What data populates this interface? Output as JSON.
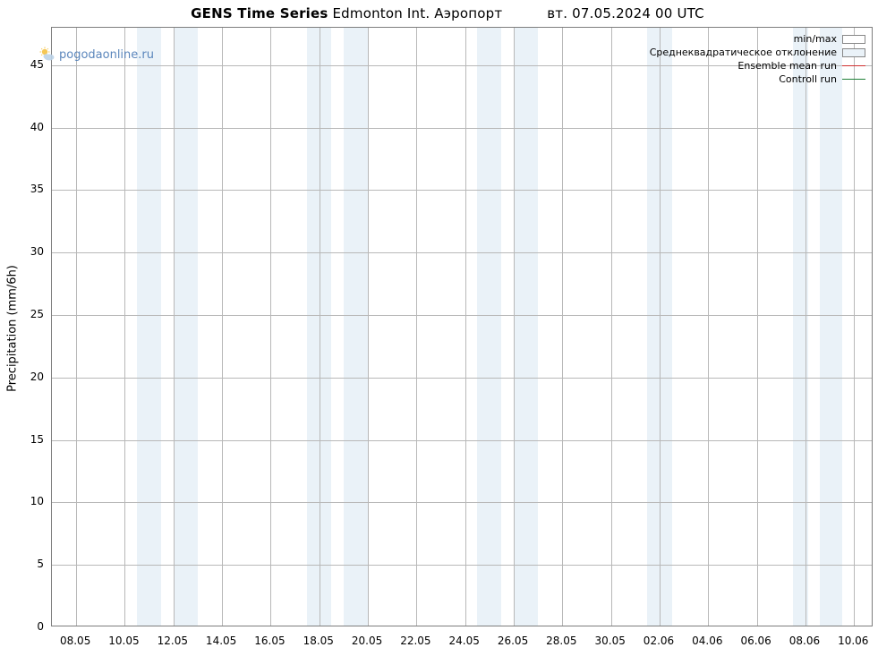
{
  "title": {
    "prefix_bold": "GENS Time Series",
    "location": "Edmonton Int. Аэропорт",
    "datetime": "вт. 07.05.2024 00 UTC"
  },
  "watermark": {
    "text": "pogodaonline.ru",
    "color": "#4a7ab5"
  },
  "chart": {
    "type": "line",
    "background_color": "#ffffff",
    "grid_color": "#b8b8b8",
    "band_color": "#eaf2f8",
    "axis_color": "#7d7d7d",
    "ylabel": "Precipitation (mm/6h)",
    "label_fontsize": 13,
    "tick_fontsize": 12,
    "ylim": [
      0,
      48
    ],
    "ytick_step": 5,
    "yticks": [
      0,
      5,
      10,
      15,
      20,
      25,
      30,
      35,
      40,
      45
    ],
    "xticks": [
      "08.05",
      "10.05",
      "12.05",
      "14.05",
      "16.05",
      "18.05",
      "20.05",
      "22.05",
      "24.05",
      "26.05",
      "28.05",
      "30.05",
      "02.06",
      "04.06",
      "06.06",
      "08.06",
      "10.06"
    ],
    "x_start_index": 0.5,
    "x_end_index": 17.4,
    "bands": [
      {
        "start": 2.25,
        "end": 2.75
      },
      {
        "start": 3.0,
        "end": 3.5
      },
      {
        "start": 5.75,
        "end": 6.25
      },
      {
        "start": 6.5,
        "end": 7.0
      },
      {
        "start": 9.25,
        "end": 9.75
      },
      {
        "start": 10.0,
        "end": 10.5
      },
      {
        "start": 12.75,
        "end": 13.25
      },
      {
        "start": 15.75,
        "end": 16.05
      },
      {
        "start": 16.3,
        "end": 16.75
      }
    ],
    "series": []
  },
  "legend": {
    "fontsize": 11,
    "items": [
      {
        "label": "min/max",
        "type": "box",
        "fill": "#ffffff",
        "stroke": "#888888"
      },
      {
        "label": "Среднеквадратическое отклонение",
        "type": "box",
        "fill": "#eaf2f8",
        "stroke": "#888888"
      },
      {
        "label": "Ensemble mean run",
        "type": "line",
        "color": "#d03030"
      },
      {
        "label": "Controll run",
        "type": "line",
        "color": "#208038"
      }
    ]
  }
}
